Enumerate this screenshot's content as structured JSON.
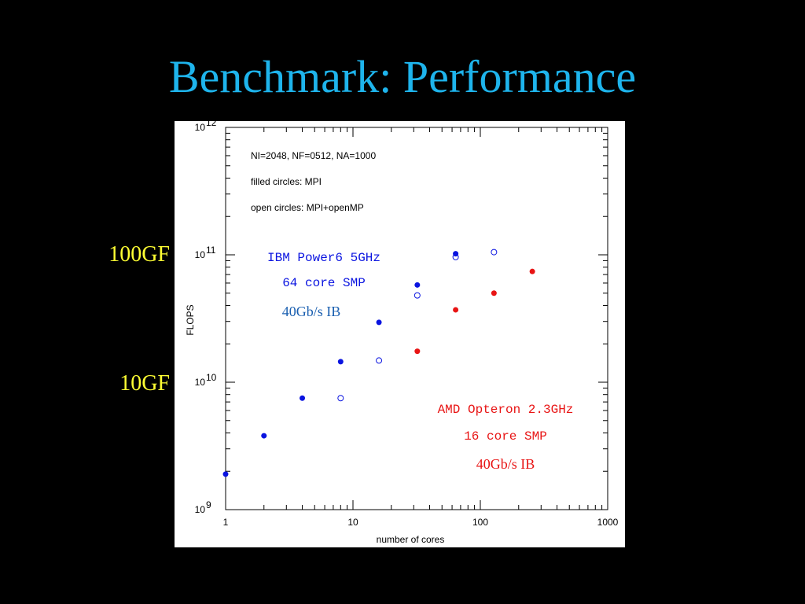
{
  "slide": {
    "title": "Benchmark: Performance",
    "label_100gf": "100GF",
    "label_10gf": "10GF"
  },
  "colors": {
    "title": "#1eb4ec",
    "side_labels": "#ffff33",
    "ibm": "#0a14e0",
    "amd": "#e81414",
    "ibm_ib": "#1a5fb0"
  },
  "chart_data": {
    "type": "scatter",
    "xlabel": "number of cores",
    "ylabel": "FLOPS",
    "xscale": "log",
    "yscale": "log",
    "xlim": [
      1,
      1000
    ],
    "ylim": [
      1000000000,
      1000000000000
    ],
    "x_tick_labels": [
      "1",
      "10",
      "100",
      "1000"
    ],
    "y_tick_labels": [
      {
        "base": "10",
        "exp": "9",
        "value": 1000000000
      },
      {
        "base": "10",
        "exp": "10",
        "value": 10000000000
      },
      {
        "base": "10",
        "exp": "11",
        "value": 100000000000
      },
      {
        "base": "10",
        "exp": "12",
        "value": 1000000000000
      }
    ],
    "notes": [
      "NI=2048, NF=0512, NA=1000",
      "filled circles: MPI",
      "open circles: MPI+openMP"
    ],
    "annotations": {
      "ibm": [
        "IBM Power6 5GHz",
        "64 core SMP",
        "40Gb/s IB"
      ],
      "amd": [
        "AMD Opteron 2.3GHz",
        "16 core SMP",
        "40Gb/s IB"
      ]
    },
    "series": [
      {
        "group": "ibm",
        "marker": "filled",
        "color": "#0a14e0",
        "points": [
          [
            1,
            1900000000
          ],
          [
            2,
            3800000000
          ],
          [
            4,
            7500000000
          ],
          [
            8,
            14500000000
          ],
          [
            16,
            29500000000
          ],
          [
            32,
            58000000000
          ],
          [
            64,
            102000000000
          ]
        ]
      },
      {
        "group": "ibm",
        "marker": "open",
        "color": "#0a14e0",
        "points": [
          [
            8,
            7500000000
          ],
          [
            16,
            14800000000
          ],
          [
            32,
            48000000000
          ],
          [
            64,
            96000000000
          ],
          [
            128,
            105000000000
          ]
        ]
      },
      {
        "group": "amd",
        "marker": "filled",
        "color": "#e81414",
        "points": [
          [
            32,
            17500000000
          ],
          [
            64,
            37000000000
          ],
          [
            128,
            50000000000
          ],
          [
            256,
            74000000000
          ]
        ]
      }
    ]
  }
}
